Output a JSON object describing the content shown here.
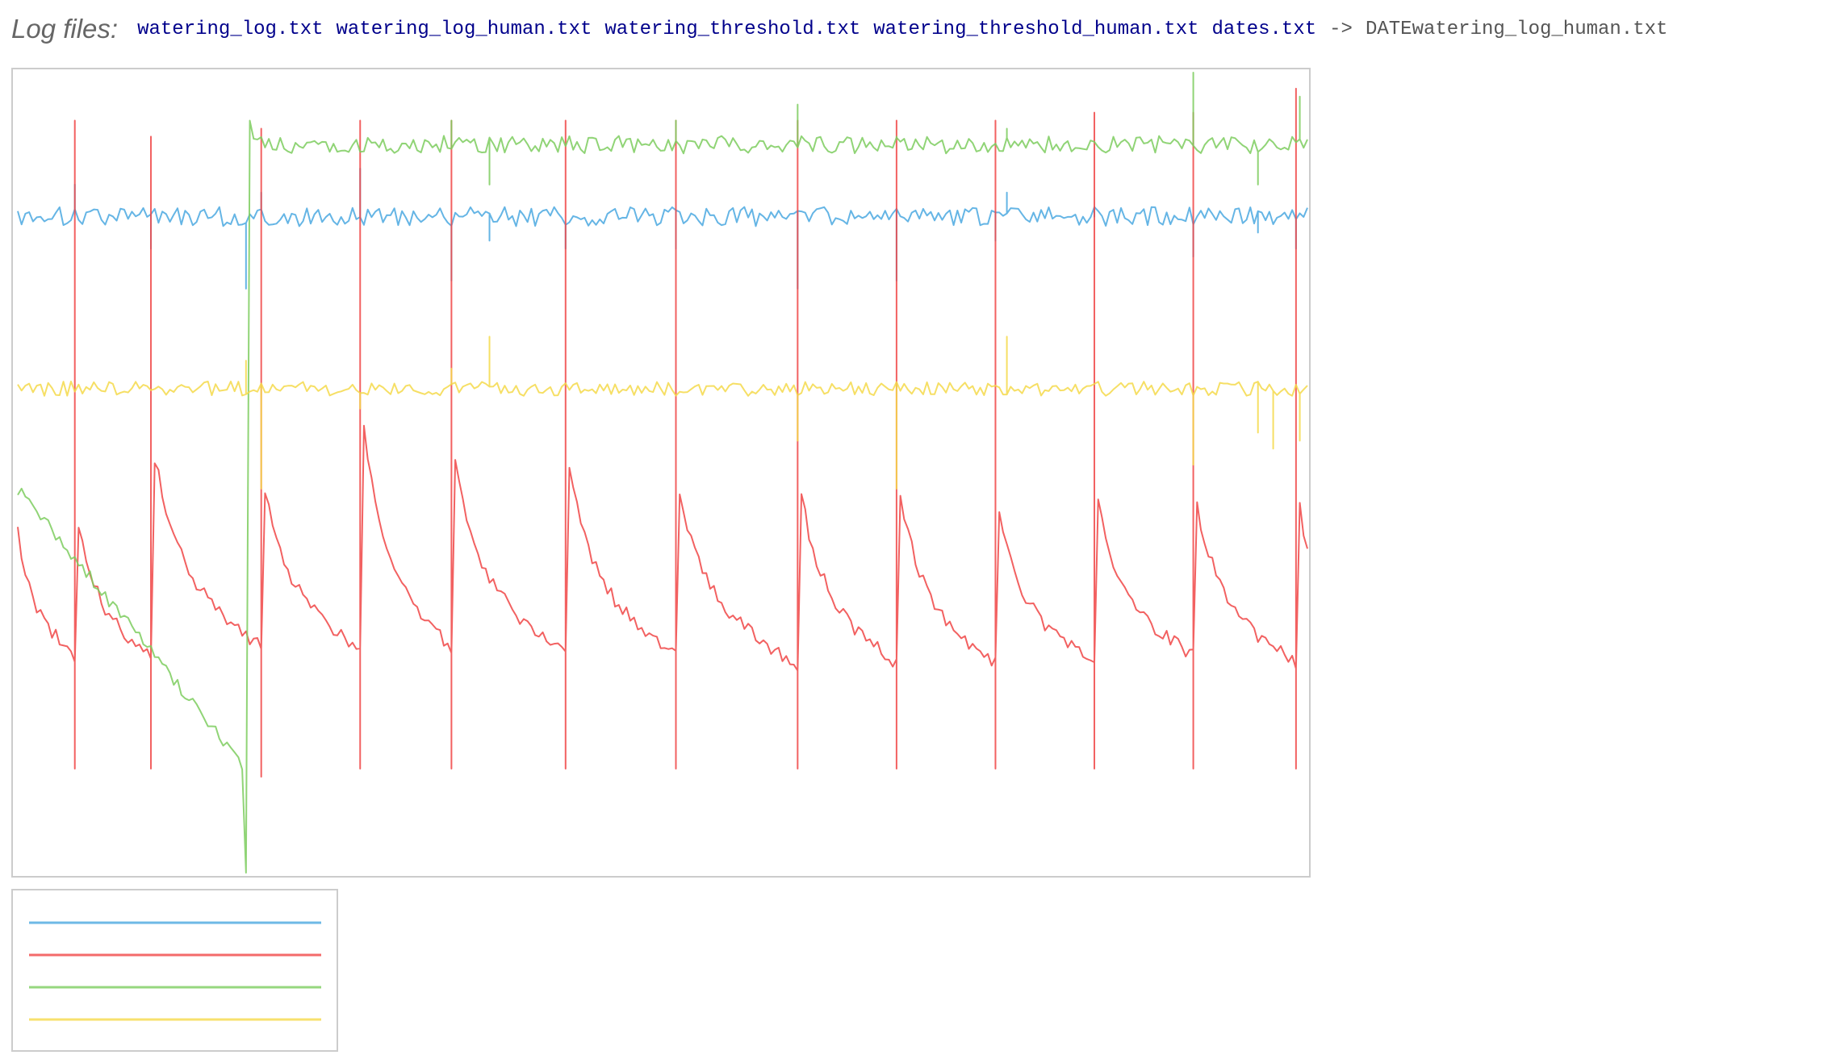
{
  "header": {
    "label": "Log files:",
    "files": [
      "watering_log.txt",
      "watering_log_human.txt",
      "watering_threshold.txt",
      "watering_threshold_human.txt",
      "dates.txt"
    ],
    "arrow": "->",
    "output": "DATEwatering_log_human.txt"
  },
  "chart_data": {
    "type": "line",
    "grid": false,
    "legend": "bottom-left",
    "xlim": [
      0,
      339
    ],
    "ylim": [
      0,
      100
    ],
    "series": [
      {
        "color": "#4aa8e0",
        "base": 82,
        "jitter": 1.2,
        "spikes": [
          {
            "i": 15,
            "v": 86
          },
          {
            "i": 35,
            "v": 78
          },
          {
            "i": 60,
            "v": 73
          },
          {
            "i": 64,
            "v": 85
          },
          {
            "i": 90,
            "v": 88
          },
          {
            "i": 114,
            "v": 74
          },
          {
            "i": 124,
            "v": 79
          },
          {
            "i": 144,
            "v": 78
          },
          {
            "i": 173,
            "v": 78
          },
          {
            "i": 205,
            "v": 73
          },
          {
            "i": 231,
            "v": 74
          },
          {
            "i": 257,
            "v": 79
          },
          {
            "i": 260,
            "v": 85
          },
          {
            "i": 283,
            "v": 82
          },
          {
            "i": 309,
            "v": 77
          },
          {
            "i": 326,
            "v": 80
          },
          {
            "i": 336,
            "v": 78
          }
        ]
      },
      {
        "color": "#f04545",
        "segments": [
          {
            "start": 0,
            "end": 15,
            "from": 43,
            "to": 27
          },
          {
            "start": 16,
            "end": 35,
            "from": 44,
            "to": 27
          },
          {
            "start": 36,
            "end": 64,
            "from": 52,
            "to": 28
          },
          {
            "start": 65,
            "end": 90,
            "from": 48,
            "to": 28
          },
          {
            "start": 91,
            "end": 114,
            "from": 55,
            "to": 28
          },
          {
            "start": 115,
            "end": 144,
            "from": 51,
            "to": 27
          },
          {
            "start": 145,
            "end": 173,
            "from": 50,
            "to": 27
          },
          {
            "start": 174,
            "end": 205,
            "from": 47,
            "to": 26
          },
          {
            "start": 206,
            "end": 231,
            "from": 47,
            "to": 26
          },
          {
            "start": 232,
            "end": 257,
            "from": 47,
            "to": 26
          },
          {
            "start": 258,
            "end": 283,
            "from": 45,
            "to": 26
          },
          {
            "start": 284,
            "end": 309,
            "from": 46,
            "to": 27
          },
          {
            "start": 310,
            "end": 336,
            "from": 46,
            "to": 26
          },
          {
            "start": 337,
            "end": 339,
            "from": 46,
            "to": 41
          }
        ],
        "spikes": [
          {
            "i": 15,
            "v": 94
          },
          {
            "i": 35,
            "v": 92
          },
          {
            "i": 64,
            "v": 93
          },
          {
            "i": 90,
            "v": 94
          },
          {
            "i": 114,
            "v": 94
          },
          {
            "i": 144,
            "v": 94
          },
          {
            "i": 173,
            "v": 94
          },
          {
            "i": 205,
            "v": 94
          },
          {
            "i": 231,
            "v": 94
          },
          {
            "i": 257,
            "v": 94
          },
          {
            "i": 283,
            "v": 95
          },
          {
            "i": 309,
            "v": 95
          },
          {
            "i": 336,
            "v": 98
          }
        ],
        "dips": [
          {
            "i": 15,
            "v": 13
          },
          {
            "i": 35,
            "v": 13
          },
          {
            "i": 64,
            "v": 12
          },
          {
            "i": 90,
            "v": 13
          },
          {
            "i": 114,
            "v": 13
          },
          {
            "i": 144,
            "v": 13
          },
          {
            "i": 173,
            "v": 13
          },
          {
            "i": 205,
            "v": 13
          },
          {
            "i": 231,
            "v": 13
          },
          {
            "i": 257,
            "v": 13
          },
          {
            "i": 283,
            "v": 13
          },
          {
            "i": 309,
            "v": 13
          },
          {
            "i": 336,
            "v": 13
          }
        ]
      },
      {
        "color": "#7ccd5e",
        "decline": {
          "start": 0,
          "end": 60,
          "from": 48,
          "to": 13
        },
        "dipIndex": 60,
        "dipValue": 0,
        "jumpIndex": 61,
        "jumpValue": 94,
        "base": 91,
        "jitter": 1.1,
        "spikes": [
          {
            "i": 114,
            "v": 94
          },
          {
            "i": 124,
            "v": 86
          },
          {
            "i": 173,
            "v": 94
          },
          {
            "i": 205,
            "v": 96
          },
          {
            "i": 231,
            "v": 92
          },
          {
            "i": 260,
            "v": 93
          },
          {
            "i": 309,
            "v": 100
          },
          {
            "i": 326,
            "v": 86
          },
          {
            "i": 337,
            "v": 97
          }
        ]
      },
      {
        "color": "#f5d94a",
        "base": 60.5,
        "jitter": 0.9,
        "spikes": [
          {
            "i": 60,
            "v": 64
          },
          {
            "i": 64,
            "v": 48
          },
          {
            "i": 90,
            "v": 58
          },
          {
            "i": 114,
            "v": 63
          },
          {
            "i": 124,
            "v": 67
          },
          {
            "i": 193,
            "v": 60
          },
          {
            "i": 205,
            "v": 54
          },
          {
            "i": 231,
            "v": 48
          },
          {
            "i": 260,
            "v": 67
          },
          {
            "i": 309,
            "v": 51
          },
          {
            "i": 326,
            "v": 55
          },
          {
            "i": 330,
            "v": 53
          },
          {
            "i": 337,
            "v": 54
          }
        ]
      }
    ]
  }
}
